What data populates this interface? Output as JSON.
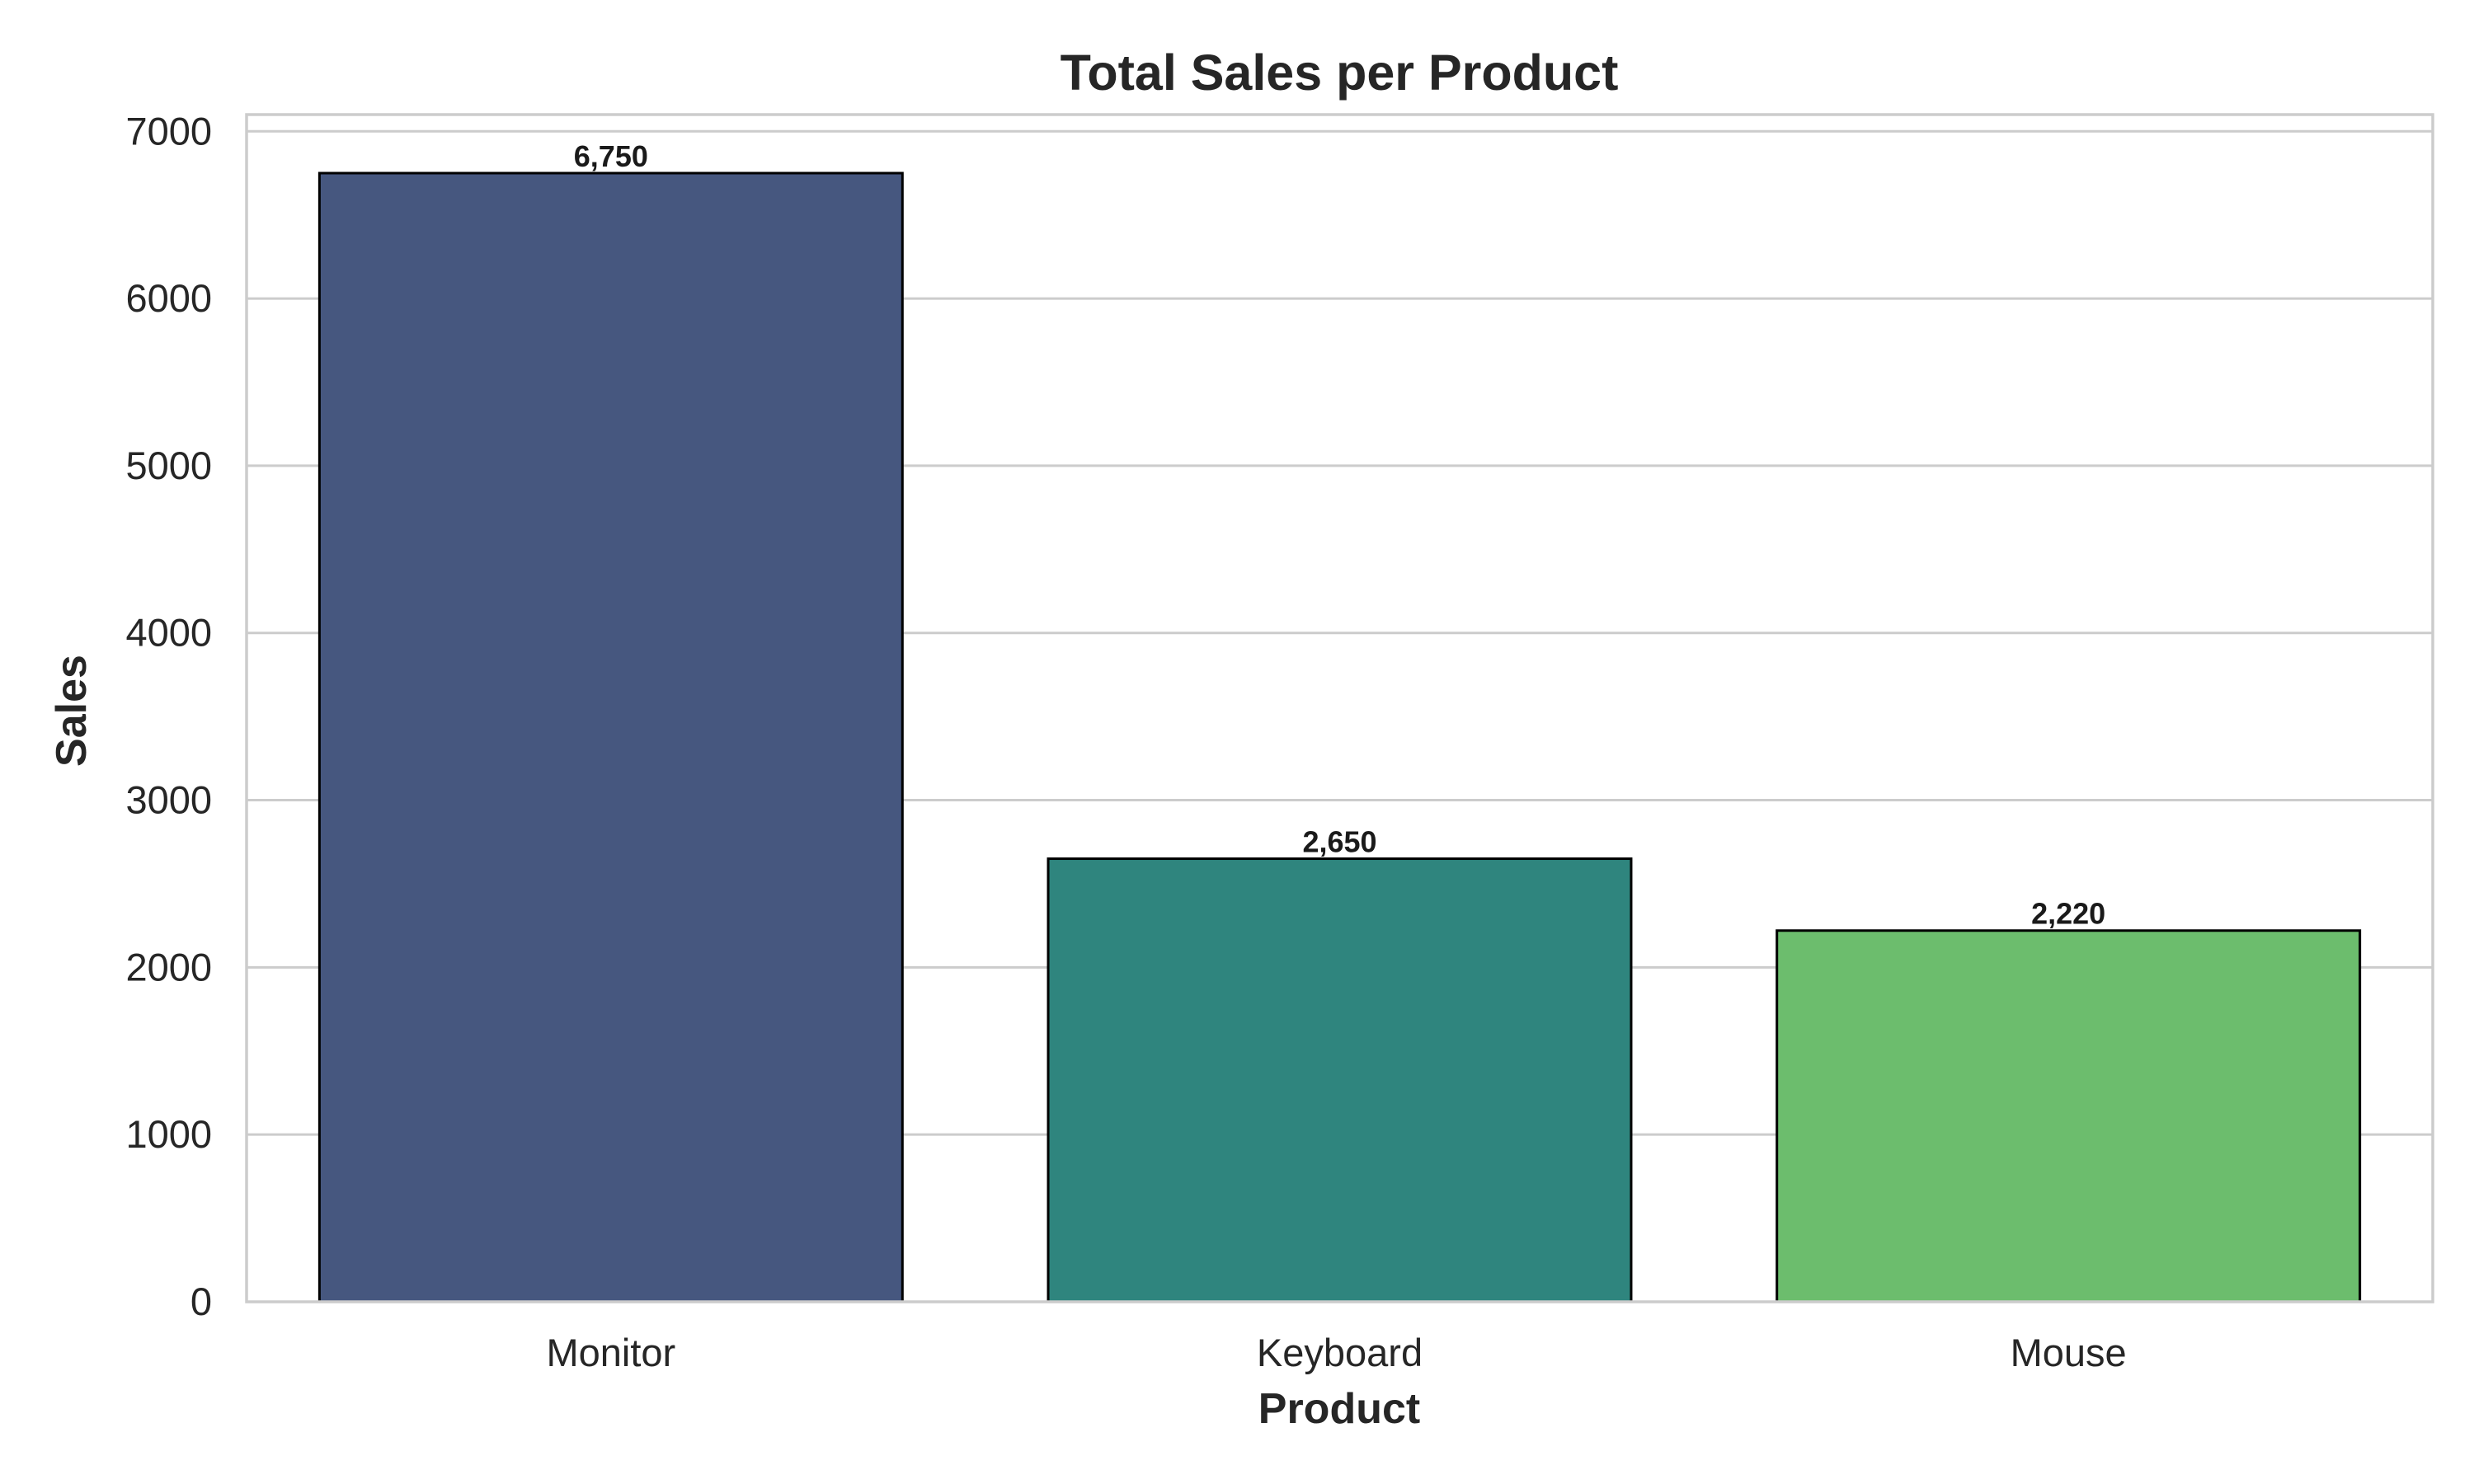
{
  "chart_data": {
    "type": "bar",
    "title": "Total Sales per Product",
    "xlabel": "Product",
    "ylabel": "Sales",
    "categories": [
      "Monitor",
      "Keyboard",
      "Mouse"
    ],
    "values": [
      6750,
      2650,
      2220
    ],
    "value_labels": [
      "6,750",
      "2,650",
      "2,220"
    ],
    "colors": [
      "#46577f",
      "#2f857e",
      "#6cbd6d"
    ],
    "ylim": [
      0,
      7100
    ],
    "yticks": [
      0,
      1000,
      2000,
      3000,
      4000,
      5000,
      6000,
      7000
    ],
    "grid": true,
    "legend": "none"
  }
}
